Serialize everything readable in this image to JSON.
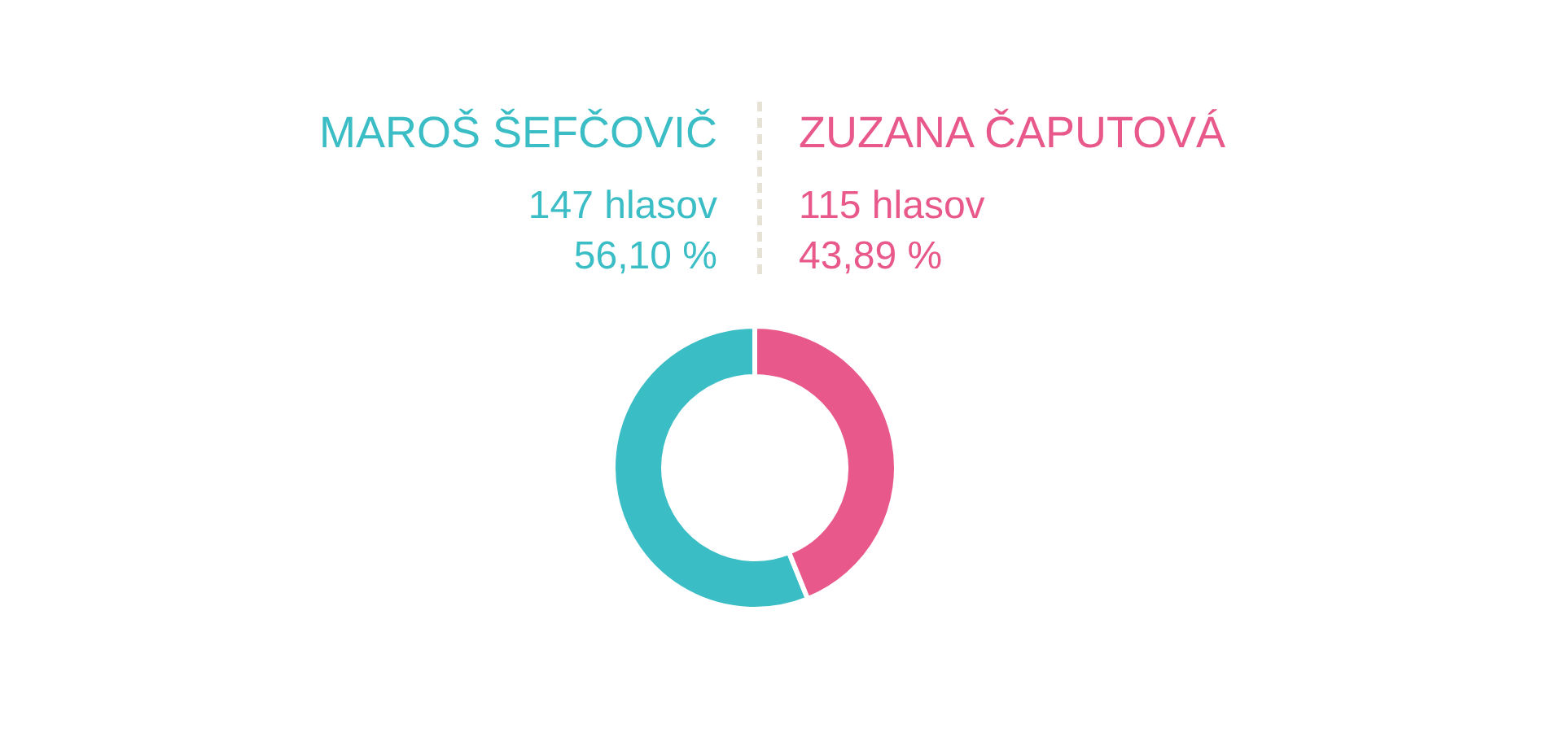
{
  "chart_data": {
    "type": "donut",
    "categories": [
      "MAROŠ ŠEFČOVIČ",
      "ZUZANA ČAPUTOVÁ"
    ],
    "values": [
      147,
      115
    ],
    "colors": [
      "#3bbdc6",
      "#e8588a"
    ],
    "value_labels": [
      "147 hlasov",
      "115 hlasov"
    ],
    "annotations": [
      "56,10 %",
      "43,89 %"
    ]
  }
}
